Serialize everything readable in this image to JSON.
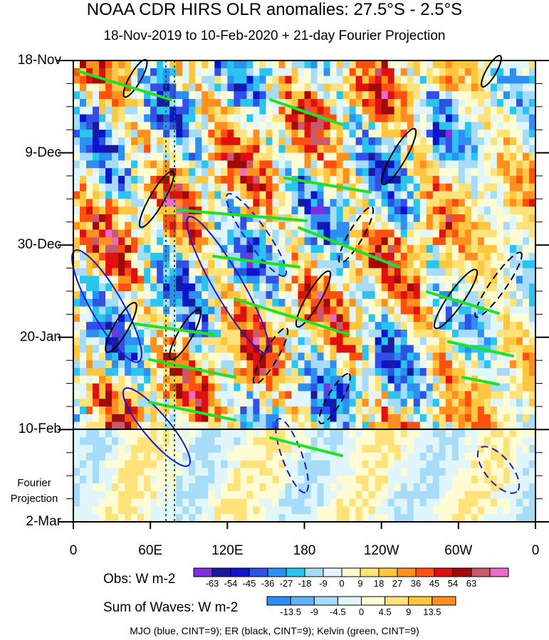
{
  "title": "NOAA CDR HIRS OLR anomalies: 27.5°S - 2.5°S",
  "subtitle": "18-Nov-2019 to 10-Feb-2020 + 21-day Fourier Projection",
  "chart_data": {
    "type": "heatmap",
    "title": "NOAA CDR HIRS OLR anomalies: 27.5°S - 2.5°S",
    "subtitle": "18-Nov-2019 to 10-Feb-2020 + 21-day Fourier Projection",
    "x_ticks": [
      "0",
      "60E",
      "120E",
      "180",
      "120W",
      "60W",
      "0"
    ],
    "y_ticks": [
      "18-Nov",
      "9-Dec",
      "30-Dec",
      "20-Jan",
      "10-Feb",
      "2-Mar"
    ],
    "y_extra_label": [
      "Fourier",
      "Projection"
    ],
    "xlim": [
      "0",
      "360"
    ],
    "ylim": [
      "18-Nov-2019",
      "2-Mar-2020"
    ],
    "projection_start": "10-Feb",
    "obs_colorbar": {
      "label": "Obs: W m-2",
      "levels": [
        "-63",
        "-54",
        "-45",
        "-36",
        "-27",
        "-18",
        "-9",
        "0",
        "9",
        "18",
        "27",
        "36",
        "45",
        "54",
        "63"
      ],
      "colors": [
        "#7f2fe0",
        "#1a1aa0",
        "#0a16c8",
        "#3050e6",
        "#2d8ff2",
        "#29c4f0",
        "#a6dcf8",
        "#e0f6fb",
        "#fffcd4",
        "#ffe27a",
        "#ffc640",
        "#ff9020",
        "#ff5010",
        "#e01010",
        "#a00a0a",
        "#c85a6c",
        "#e86cc8"
      ]
    },
    "waves_colorbar": {
      "label": "Sum of Waves: W m-2",
      "levels": [
        "-13.5",
        "-9",
        "-4.5",
        "0",
        "4.5",
        "9",
        "13.5"
      ],
      "colors": [
        "#2d8ff2",
        "#5fb4f4",
        "#a6dcf8",
        "#e0f6fb",
        "#fffcd4",
        "#ffe27a",
        "#ffc640",
        "#ff9020"
      ]
    },
    "legend": "MJO (blue, CINT=9); ER (black, CINT=9); Kelvin (green, CINT=9)",
    "series": [
      {
        "name": "MJO",
        "color": "#1a1ad0",
        "cint": 9
      },
      {
        "name": "ER",
        "color": "#000000",
        "cint": 9
      },
      {
        "name": "Kelvin",
        "color": "#22e022",
        "cint": 9
      }
    ]
  }
}
